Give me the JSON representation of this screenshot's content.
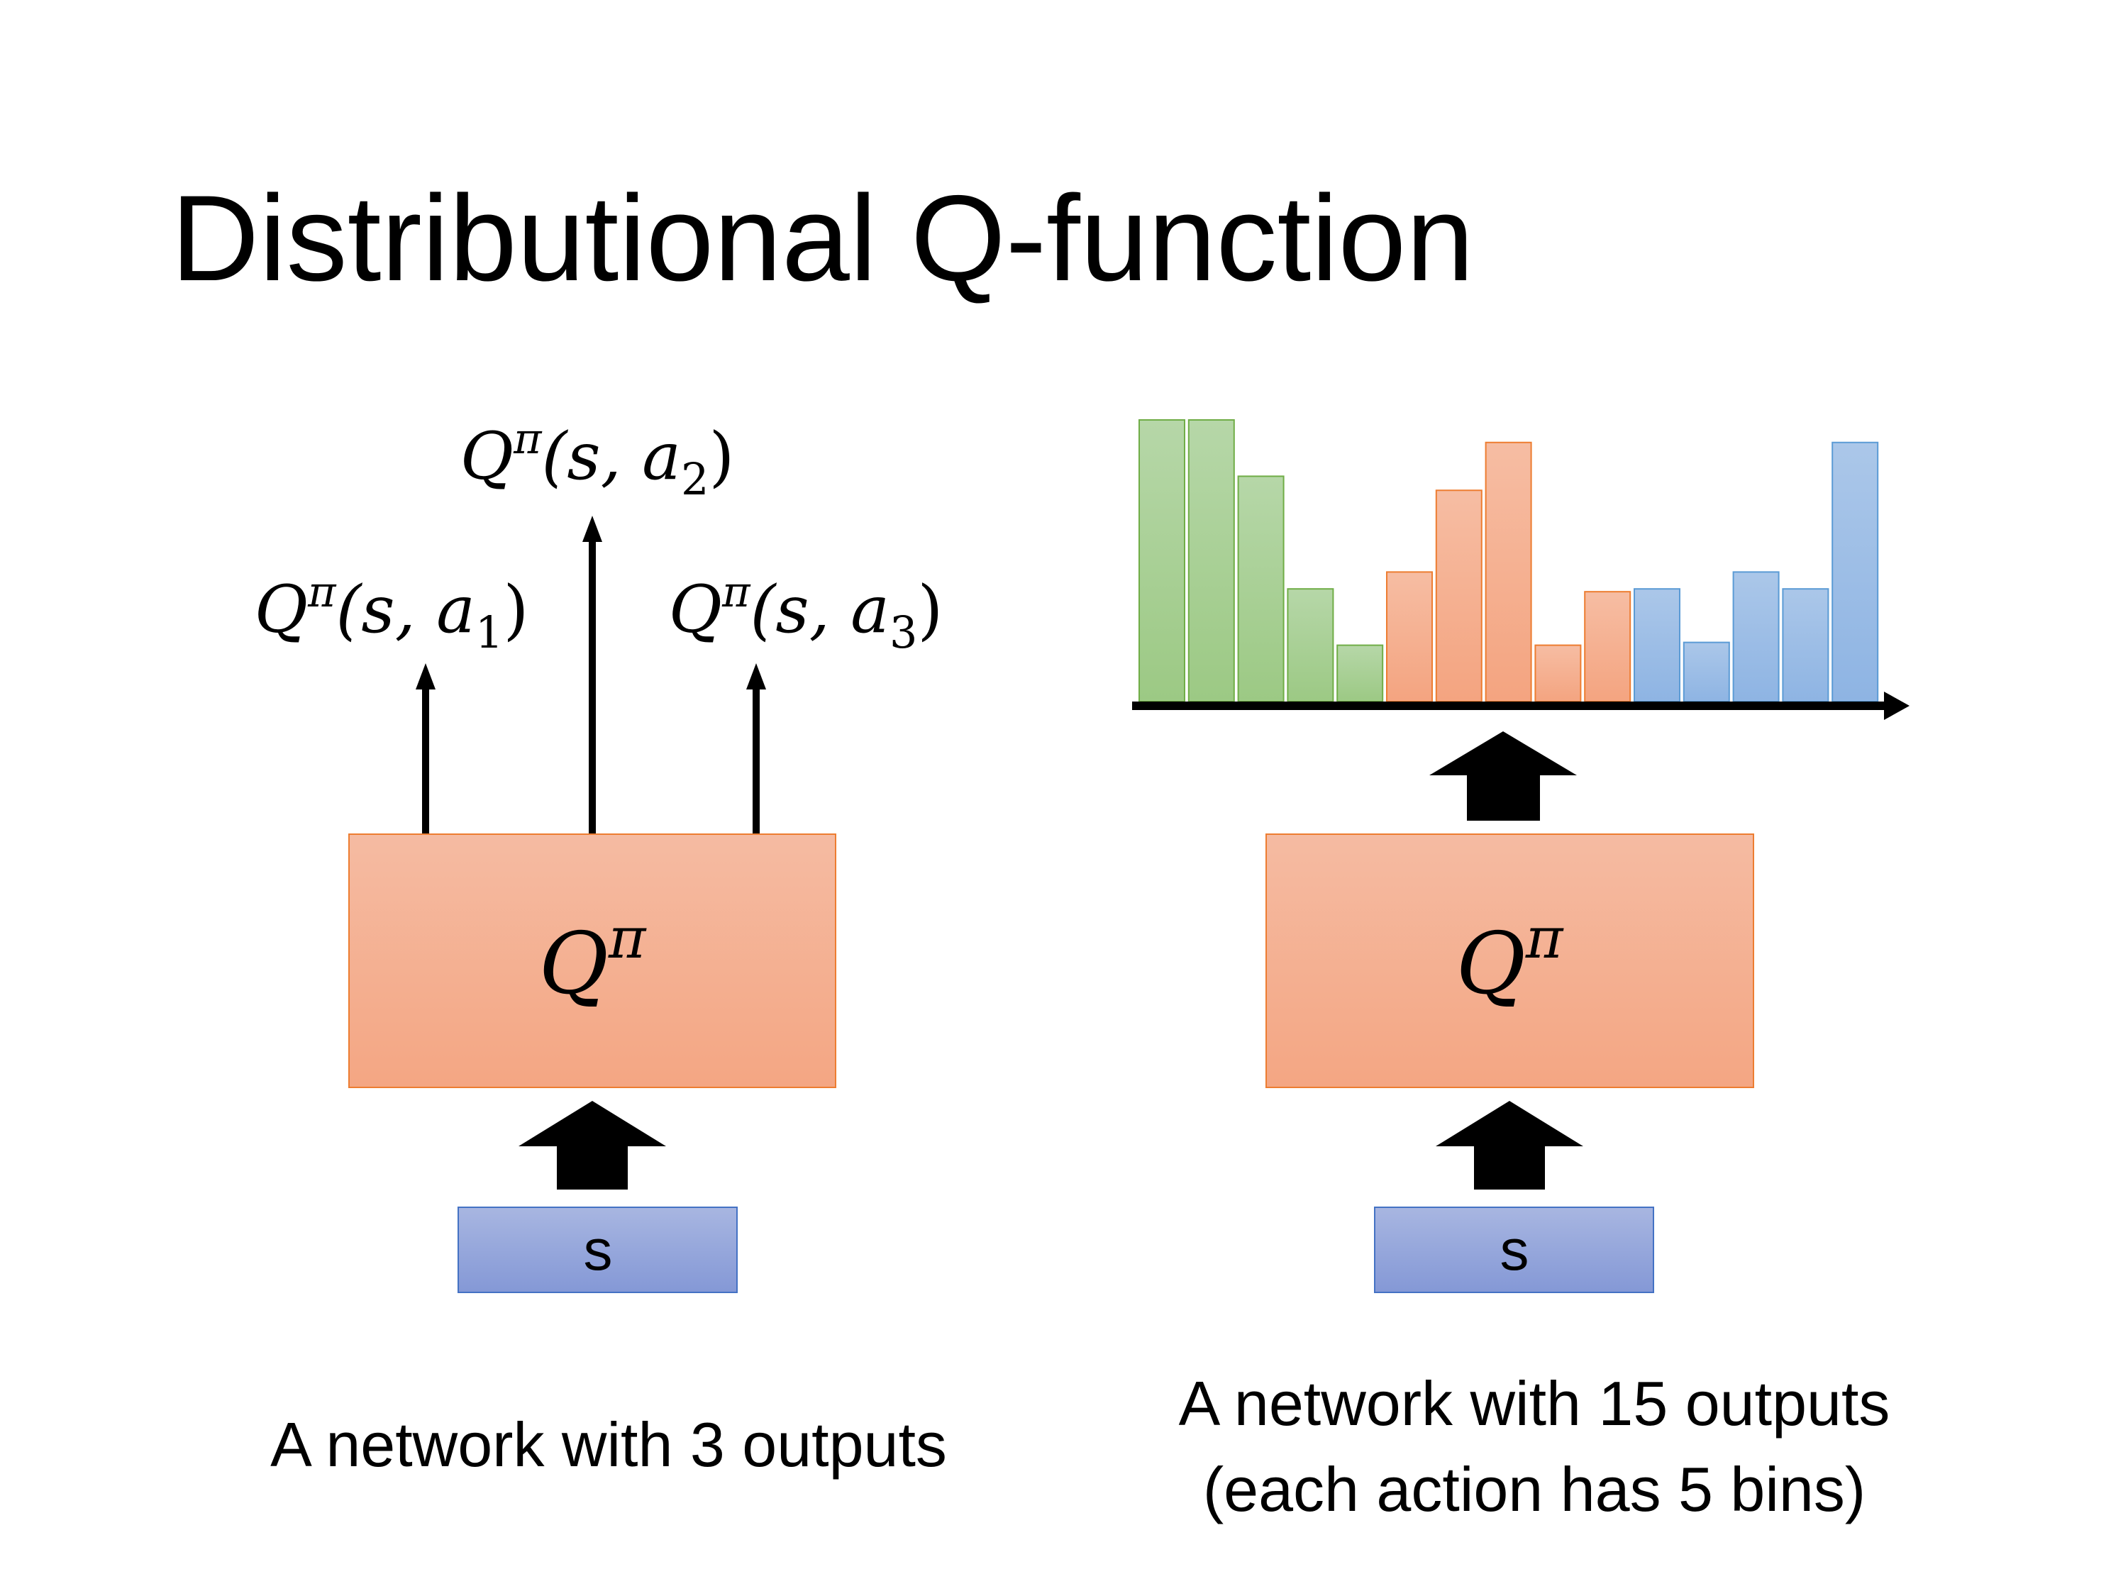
{
  "title": "Distributional Q-function",
  "left": {
    "outputs": [
      {
        "base": "Q",
        "sup": "π",
        "args": "(s, a",
        "sub": "1",
        "close": ")"
      },
      {
        "base": "Q",
        "sup": "π",
        "args": "(s, a",
        "sub": "2",
        "close": ")"
      },
      {
        "base": "Q",
        "sup": "π",
        "args": "(s, a",
        "sub": "3",
        "close": ")"
      }
    ],
    "network": {
      "base": "Q",
      "sup": "π"
    },
    "input": "s",
    "caption": "A network with 3 outputs"
  },
  "right": {
    "network": {
      "base": "Q",
      "sup": "π"
    },
    "input": "s",
    "caption_line1": "A network with 15 outputs",
    "caption_line2": "(each action has 5 bins)"
  },
  "chart_data": {
    "type": "bar",
    "title": "",
    "xlabel": "",
    "ylabel": "",
    "ylim": [
      0,
      100
    ],
    "grid": false,
    "series": [
      {
        "values": [
          100,
          100,
          80,
          40,
          20
        ],
        "color": "#70AD47"
      },
      {
        "values": [
          46,
          75,
          92,
          20,
          39
        ],
        "color": "#ED7D31"
      },
      {
        "values": [
          40,
          21,
          46,
          40,
          92
        ],
        "color": "#5B9BD5"
      }
    ]
  },
  "colors": {
    "network_fill": "#F4B194",
    "network_border": "#ED7D31",
    "input_fill": "#95A7DC",
    "input_border": "#4472C4"
  }
}
